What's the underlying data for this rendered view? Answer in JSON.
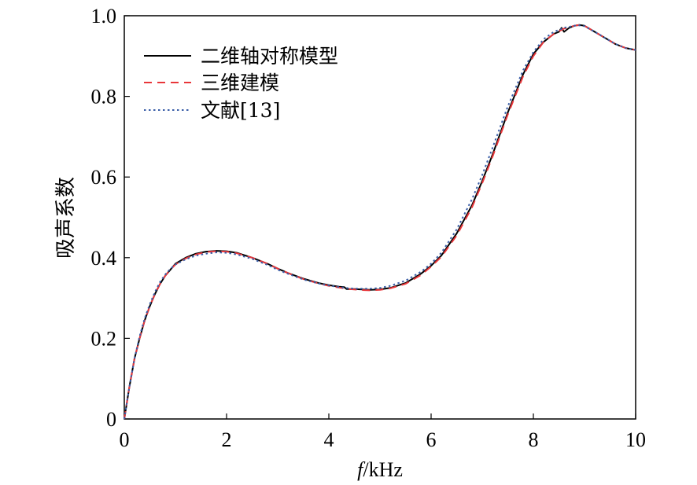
{
  "chart_data": {
    "type": "line",
    "title": "",
    "xlabel_italic": "f",
    "xlabel_rest": "/kHz",
    "ylabel": "吸声系数",
    "xlim": [
      0,
      10
    ],
    "ylim": [
      0,
      1.0
    ],
    "xticks": [
      0,
      2,
      4,
      6,
      8,
      10
    ],
    "xtick_labels": [
      "0",
      "2",
      "4",
      "6",
      "8",
      "10"
    ],
    "yticks": [
      0,
      0.2,
      0.4,
      0.6,
      0.8,
      1.0
    ],
    "ytick_labels": [
      "0",
      "0.2",
      "0.4",
      "0.6",
      "0.8",
      "1.0"
    ],
    "grid": false,
    "legend_position": "top-left",
    "series": [
      {
        "name": "二维轴对称模型",
        "color": "#000000",
        "style": "solid",
        "x": [
          0,
          0.1,
          0.2,
          0.3,
          0.4,
          0.5,
          0.6,
          0.7,
          0.8,
          0.9,
          1.0,
          1.2,
          1.4,
          1.6,
          1.8,
          2.0,
          2.2,
          2.5,
          2.8,
          3.0,
          3.2,
          3.5,
          3.8,
          4.0,
          4.2,
          4.3,
          4.35,
          4.5,
          4.8,
          5.0,
          5.2,
          5.5,
          5.8,
          6.0,
          6.2,
          6.5,
          6.8,
          7.0,
          7.2,
          7.5,
          7.8,
          8.0,
          8.2,
          8.4,
          8.5,
          8.55,
          8.6,
          8.7,
          8.8,
          8.9,
          9.0,
          9.2,
          9.4,
          9.6,
          9.8,
          10.0
        ],
        "y": [
          0.0,
          0.08,
          0.15,
          0.2,
          0.245,
          0.28,
          0.31,
          0.335,
          0.355,
          0.37,
          0.385,
          0.4,
          0.41,
          0.415,
          0.417,
          0.416,
          0.412,
          0.4,
          0.385,
          0.373,
          0.362,
          0.348,
          0.337,
          0.332,
          0.328,
          0.327,
          0.322,
          0.322,
          0.32,
          0.321,
          0.325,
          0.337,
          0.36,
          0.38,
          0.405,
          0.46,
          0.53,
          0.59,
          0.655,
          0.76,
          0.855,
          0.905,
          0.935,
          0.955,
          0.96,
          0.97,
          0.96,
          0.97,
          0.975,
          0.977,
          0.975,
          0.96,
          0.945,
          0.93,
          0.92,
          0.915
        ]
      },
      {
        "name": "三维建模",
        "color": "#e8363a",
        "style": "dashed",
        "x": [
          0,
          0.1,
          0.2,
          0.3,
          0.4,
          0.5,
          0.6,
          0.7,
          0.8,
          0.9,
          1.0,
          1.2,
          1.4,
          1.6,
          1.8,
          2.0,
          2.2,
          2.5,
          2.8,
          3.0,
          3.2,
          3.5,
          3.8,
          4.0,
          4.2,
          4.4,
          4.6,
          4.8,
          5.0,
          5.2,
          5.5,
          5.8,
          6.0,
          6.2,
          6.5,
          6.8,
          7.0,
          7.2,
          7.5,
          7.8,
          8.0,
          8.2,
          8.4,
          8.6,
          8.8,
          8.9,
          9.0,
          9.2,
          9.4,
          9.6,
          9.8,
          10.0
        ],
        "y": [
          0.0,
          0.08,
          0.15,
          0.2,
          0.245,
          0.28,
          0.31,
          0.335,
          0.355,
          0.37,
          0.383,
          0.398,
          0.408,
          0.414,
          0.416,
          0.415,
          0.411,
          0.4,
          0.385,
          0.373,
          0.362,
          0.347,
          0.336,
          0.33,
          0.326,
          0.322,
          0.32,
          0.319,
          0.32,
          0.324,
          0.335,
          0.357,
          0.378,
          0.402,
          0.455,
          0.525,
          0.585,
          0.65,
          0.755,
          0.85,
          0.9,
          0.935,
          0.955,
          0.968,
          0.975,
          0.977,
          0.975,
          0.96,
          0.945,
          0.93,
          0.92,
          0.915
        ]
      },
      {
        "name": "文献[13]",
        "color": "#3a5ea8",
        "style": "dotted",
        "x": [
          0,
          0.1,
          0.2,
          0.3,
          0.4,
          0.5,
          0.6,
          0.7,
          0.8,
          0.9,
          1.0,
          1.2,
          1.4,
          1.6,
          1.8,
          2.0,
          2.2,
          2.5,
          2.8,
          3.0,
          3.2,
          3.5,
          3.8,
          4.0,
          4.2,
          4.4,
          4.6,
          4.8,
          5.0,
          5.2,
          5.5,
          5.8,
          6.0,
          6.2,
          6.5,
          6.8,
          7.0,
          7.2,
          7.5,
          7.8,
          8.0,
          8.2,
          8.4,
          8.6,
          8.8,
          8.9,
          9.0,
          9.2,
          9.4,
          9.6,
          9.8,
          10.0
        ],
        "y": [
          0.0,
          0.08,
          0.15,
          0.205,
          0.25,
          0.285,
          0.315,
          0.34,
          0.358,
          0.372,
          0.383,
          0.396,
          0.405,
          0.41,
          0.413,
          0.412,
          0.408,
          0.397,
          0.382,
          0.37,
          0.36,
          0.346,
          0.336,
          0.331,
          0.327,
          0.324,
          0.323,
          0.323,
          0.325,
          0.33,
          0.343,
          0.365,
          0.385,
          0.412,
          0.47,
          0.545,
          0.605,
          0.672,
          0.775,
          0.865,
          0.91,
          0.942,
          0.96,
          0.97,
          0.975,
          0.976,
          0.974,
          0.96,
          0.945,
          0.93,
          0.92,
          0.915
        ]
      }
    ]
  }
}
